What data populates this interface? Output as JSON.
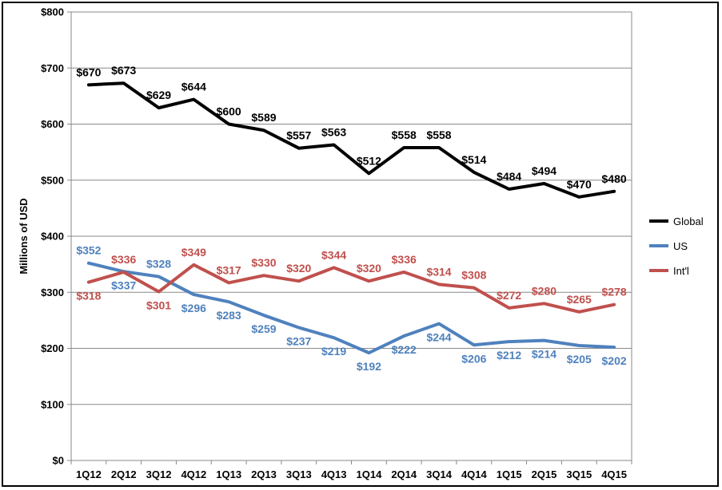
{
  "chart_data": {
    "type": "line",
    "ylabel": "Millions of USD",
    "xlabel": "",
    "ylim": [
      0,
      800
    ],
    "yticks": [
      "$0",
      "$100",
      "$200",
      "$300",
      "$400",
      "$500",
      "$600",
      "$700",
      "$800"
    ],
    "categories": [
      "1Q12",
      "2Q12",
      "3Q12",
      "4Q12",
      "1Q13",
      "2Q13",
      "3Q13",
      "4Q13",
      "1Q14",
      "2Q14",
      "3Q14",
      "4Q14",
      "1Q15",
      "2Q15",
      "3Q15",
      "4Q15"
    ],
    "legend_position": "right",
    "grid": true,
    "series": [
      {
        "name": "Global",
        "color": "#000000",
        "values": [
          670,
          673,
          629,
          644,
          600,
          589,
          557,
          563,
          512,
          558,
          558,
          514,
          484,
          494,
          470,
          480
        ],
        "labels": [
          "$670",
          "$673",
          "$629",
          "$644",
          "$600",
          "$589",
          "$557",
          "$563",
          "$512",
          "$558",
          "$558",
          "$514",
          "$484",
          "$494",
          "$470",
          "$480"
        ]
      },
      {
        "name": "US",
        "color": "#4f81bd",
        "values": [
          352,
          337,
          328,
          296,
          283,
          259,
          237,
          219,
          192,
          222,
          244,
          206,
          212,
          214,
          205,
          202
        ],
        "labels": [
          "$352",
          "$337",
          "$328",
          "$296",
          "$283",
          "$259",
          "$237",
          "$219",
          "$192",
          "$222",
          "$244",
          "$206",
          "$212",
          "$214",
          "$205",
          "$202"
        ]
      },
      {
        "name": "Int'l",
        "color": "#c0504d",
        "values": [
          318,
          336,
          301,
          349,
          317,
          330,
          320,
          344,
          320,
          336,
          314,
          308,
          272,
          280,
          265,
          278
        ],
        "labels": [
          "$318",
          "$336",
          "$301",
          "$349",
          "$317",
          "$330",
          "$320",
          "$344",
          "$320",
          "$336",
          "$314",
          "$308",
          "$272",
          "$280",
          "$265",
          "$278"
        ]
      }
    ]
  }
}
